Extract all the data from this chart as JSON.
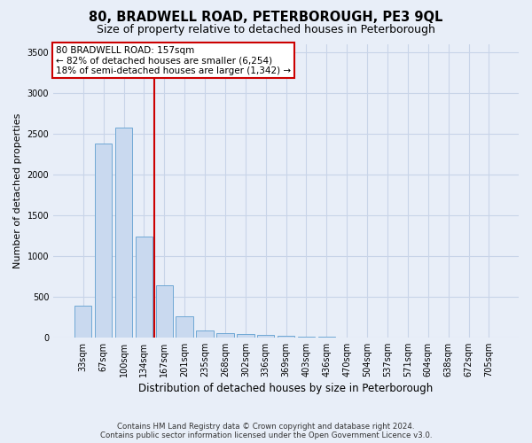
{
  "title": "80, BRADWELL ROAD, PETERBOROUGH, PE3 9QL",
  "subtitle": "Size of property relative to detached houses in Peterborough",
  "xlabel": "Distribution of detached houses by size in Peterborough",
  "ylabel": "Number of detached properties",
  "footnote": "Contains HM Land Registry data © Crown copyright and database right 2024.\nContains public sector information licensed under the Open Government Licence v3.0.",
  "bar_labels": [
    "33sqm",
    "67sqm",
    "100sqm",
    "134sqm",
    "167sqm",
    "201sqm",
    "235sqm",
    "268sqm",
    "302sqm",
    "336sqm",
    "369sqm",
    "403sqm",
    "436sqm",
    "470sqm",
    "504sqm",
    "537sqm",
    "571sqm",
    "604sqm",
    "638sqm",
    "672sqm",
    "705sqm"
  ],
  "bar_values": [
    390,
    2380,
    2580,
    1240,
    640,
    255,
    90,
    55,
    45,
    30,
    20,
    10,
    5,
    3,
    2,
    1,
    1,
    1,
    0,
    0,
    0
  ],
  "bar_color": "#c9d9ef",
  "bar_edge_color": "#6fa8d5",
  "red_line_x": 3.5,
  "annotation_line1": "80 BRADWELL ROAD: 157sqm",
  "annotation_line2": "← 82% of detached houses are smaller (6,254)",
  "annotation_line3": "18% of semi-detached houses are larger (1,342) →",
  "annotation_box_color": "#ffffff",
  "annotation_box_edge_color": "#cc0000",
  "ylim": [
    0,
    3600
  ],
  "yticks": [
    0,
    500,
    1000,
    1500,
    2000,
    2500,
    3000,
    3500
  ],
  "background_color": "#e8eef8",
  "grid_color": "#c8d4e8",
  "title_fontsize": 10.5,
  "subtitle_fontsize": 9,
  "tick_fontsize": 7,
  "ylabel_fontsize": 8,
  "xlabel_fontsize": 8.5
}
